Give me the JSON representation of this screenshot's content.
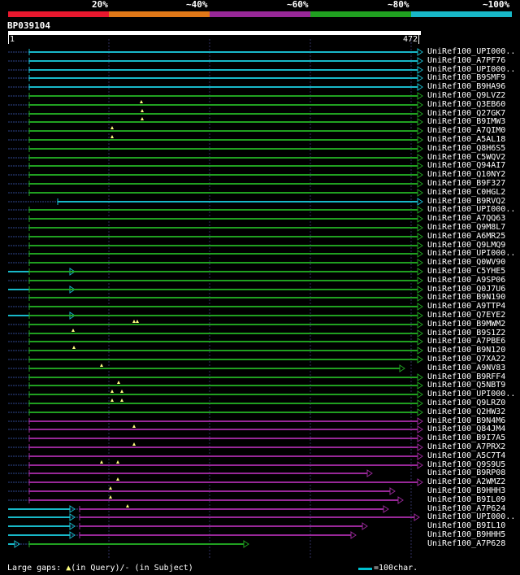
{
  "legend": {
    "colors": [
      "#e8182e",
      "#e07818",
      "#982898",
      "#20a020",
      "#18b8c8"
    ],
    "labels": [
      "20%",
      "~40%",
      "~60%",
      "~80%",
      "~100%"
    ]
  },
  "query": {
    "name": "BP039104",
    "start": "1",
    "end": "472"
  },
  "footer": {
    "large_gaps_label": "Large gaps: ",
    "in_query_glyph": "▲",
    "in_query_label": "(in Query)/",
    "in_subject_label": "- (in Subject)",
    "scale_label": "=100char."
  },
  "hits": [
    {
      "name": "UniRef100_UPI000..",
      "color": "#18b8c8"
    },
    {
      "name": "UniRef100_A7PF76",
      "color": "#18b8c8"
    },
    {
      "name": "UniRef100_UPI000..",
      "color": "#18b8c8"
    },
    {
      "name": "UniRef100_B9SMF9",
      "color": "#18b8c8"
    },
    {
      "name": "UniRef100_B9HA96",
      "color": "#18b8c8"
    },
    {
      "name": "UniRef100_Q9LVZ2",
      "color": "#20a020"
    },
    {
      "name": "UniRef100_Q3EB60",
      "color": "#20a020"
    },
    {
      "name": "UniRef100_Q27GK7",
      "color": "#20a020"
    },
    {
      "name": "UniRef100_B9IMW3",
      "color": "#20a020"
    },
    {
      "name": "UniRef100_A7QIM0",
      "color": "#20a020"
    },
    {
      "name": "UniRef100_A5AL18",
      "color": "#20a020"
    },
    {
      "name": "UniRef100_Q8H6S5",
      "color": "#20a020"
    },
    {
      "name": "UniRef100_C5WQV2",
      "color": "#20a020"
    },
    {
      "name": "UniRef100_Q94AI7",
      "color": "#20a020"
    },
    {
      "name": "UniRef100_Q10NY2",
      "color": "#20a020"
    },
    {
      "name": "UniRef100_B9F327",
      "color": "#20a020"
    },
    {
      "name": "UniRef100_C0HGL2",
      "color": "#20a020"
    },
    {
      "name": "UniRef100_B9RVQ2",
      "color": "#18b8c8"
    },
    {
      "name": "UniRef100_UPI000..",
      "color": "#20a020"
    },
    {
      "name": "UniRef100_A7QQ63",
      "color": "#20a020"
    },
    {
      "name": "UniRef100_Q9M8L7",
      "color": "#20a020"
    },
    {
      "name": "UniRef100_A6MR25",
      "color": "#20a020"
    },
    {
      "name": "UniRef100_Q9LMQ9",
      "color": "#20a020"
    },
    {
      "name": "UniRef100_UPI000..",
      "color": "#20a020"
    },
    {
      "name": "UniRef100_Q0WV90",
      "color": "#20a020"
    },
    {
      "name": "UniRef100_C5YHE5",
      "color": "#20a020"
    },
    {
      "name": "UniRef100_A9SP06",
      "color": "#20a020"
    },
    {
      "name": "UniRef100_Q0J7U6",
      "color": "#20a020"
    },
    {
      "name": "UniRef100_B9N190",
      "color": "#20a020"
    },
    {
      "name": "UniRef100_A9TTP4",
      "color": "#20a020"
    },
    {
      "name": "UniRef100_Q7EYE2",
      "color": "#20a020"
    },
    {
      "name": "UniRef100_B9MWM2",
      "color": "#20a020"
    },
    {
      "name": "UniRef100_B9S1Z2",
      "color": "#20a020"
    },
    {
      "name": "UniRef100_A7PBE6",
      "color": "#20a020"
    },
    {
      "name": "UniRef100_B9N120",
      "color": "#20a020"
    },
    {
      "name": "UniRef100_Q7XA22",
      "color": "#20a020"
    },
    {
      "name": "UniRef100_A9NV83",
      "color": "#20a020"
    },
    {
      "name": "UniRef100_B9RFF4",
      "color": "#20a020"
    },
    {
      "name": "UniRef100_Q5NBT9",
      "color": "#20a020"
    },
    {
      "name": "UniRef100_UPI000..",
      "color": "#20a020"
    },
    {
      "name": "UniRef100_Q9LRZ0",
      "color": "#20a020"
    },
    {
      "name": "UniRef100_Q2HW32",
      "color": "#20a020"
    },
    {
      "name": "UniRef100_B9N4M6",
      "color": "#982898"
    },
    {
      "name": "UniRef100_Q84JM4",
      "color": "#982898"
    },
    {
      "name": "UniRef100_B9I7A5",
      "color": "#982898"
    },
    {
      "name": "UniRef100_A7PRX2",
      "color": "#982898"
    },
    {
      "name": "UniRef100_A5C7T4",
      "color": "#982898"
    },
    {
      "name": "UniRef100_Q9S9U5",
      "color": "#982898"
    },
    {
      "name": "UniRef100_B9RP08",
      "color": "#982898"
    },
    {
      "name": "UniRef100_A2WMZ2",
      "color": "#982898"
    },
    {
      "name": "UniRef100_B9HHH3",
      "color": "#982898"
    },
    {
      "name": "UniRef100_B9IL09",
      "color": "#982898"
    },
    {
      "name": "UniRef100_A7P624",
      "color": "#982898"
    },
    {
      "name": "UniRef100_UPI000..",
      "color": "#982898"
    },
    {
      "name": "UniRef100_B9IL10",
      "color": "#982898"
    },
    {
      "name": "UniRef100_B9HHH5",
      "color": "#982898"
    },
    {
      "name": "UniRef100_A7P628",
      "color": "#20a020"
    }
  ]
}
